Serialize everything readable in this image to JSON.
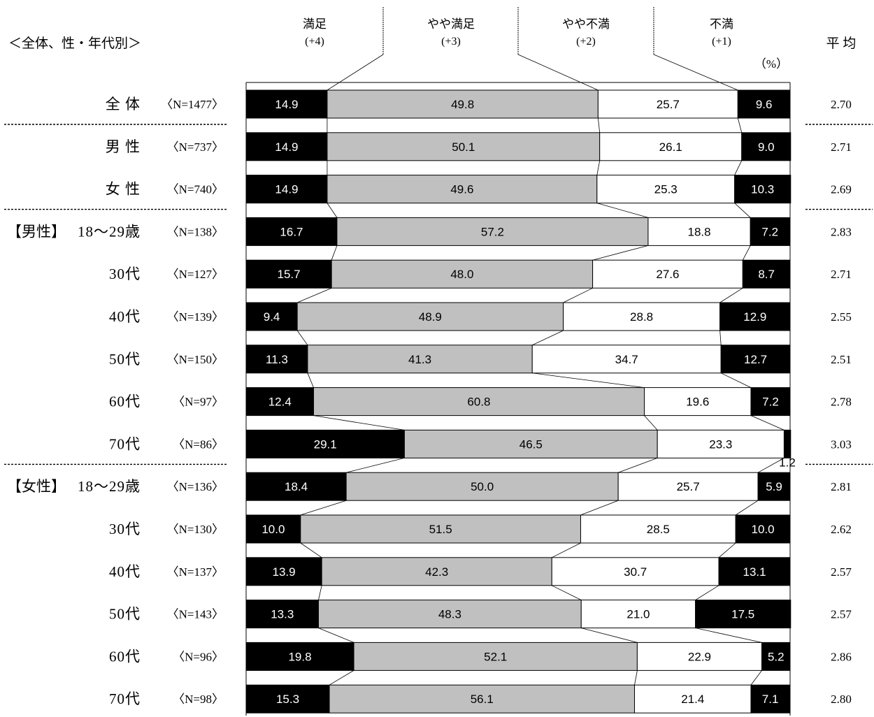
{
  "chart_data": {
    "type": "bar",
    "stacked": true,
    "orientation": "horizontal",
    "title": "＜全体、性・年代別＞",
    "unit": "（%）",
    "average_header": "平 均",
    "legend_placement": "top",
    "series": [
      {
        "name": "満足",
        "score": "(+4)",
        "color": "#000000"
      },
      {
        "name": "やや満足",
        "score": "(+3)",
        "color": "#c0c0c0"
      },
      {
        "name": "やや不満",
        "score": "(+2)",
        "color": "#ffffff"
      },
      {
        "name": "不満",
        "score": "(+1)",
        "color": "#000000"
      }
    ],
    "rows": [
      {
        "group": "",
        "label": "全 体",
        "n": "〈N=1477〉",
        "values": [
          14.9,
          49.8,
          25.7,
          9.6
        ],
        "average": "2.70"
      },
      {
        "group": "",
        "label": "男 性",
        "n": "〈N=737〉",
        "values": [
          14.9,
          50.1,
          26.1,
          9.0
        ],
        "average": "2.71"
      },
      {
        "group": "",
        "label": "女 性",
        "n": "〈N=740〉",
        "values": [
          14.9,
          49.6,
          25.3,
          10.3
        ],
        "average": "2.69"
      },
      {
        "group": "【男性】",
        "label": "18～29歳",
        "n": "〈N=138〉",
        "values": [
          16.7,
          57.2,
          18.8,
          7.2
        ],
        "average": "2.83"
      },
      {
        "group": "",
        "label": "30代",
        "n": "〈N=127〉",
        "values": [
          15.7,
          48.0,
          27.6,
          8.7
        ],
        "average": "2.71"
      },
      {
        "group": "",
        "label": "40代",
        "n": "〈N=139〉",
        "values": [
          9.4,
          48.9,
          28.8,
          12.9
        ],
        "average": "2.55"
      },
      {
        "group": "",
        "label": "50代",
        "n": "〈N=150〉",
        "values": [
          11.3,
          41.3,
          34.7,
          12.7
        ],
        "average": "2.51"
      },
      {
        "group": "",
        "label": "60代",
        "n": "〈N=97〉",
        "values": [
          12.4,
          60.8,
          19.6,
          7.2
        ],
        "average": "2.78"
      },
      {
        "group": "",
        "label": "70代",
        "n": "〈N=86〉",
        "values": [
          29.1,
          46.5,
          23.3,
          1.2
        ],
        "average": "3.03"
      },
      {
        "group": "【女性】",
        "label": "18～29歳",
        "n": "〈N=136〉",
        "values": [
          18.4,
          50.0,
          25.7,
          5.9
        ],
        "average": "2.81"
      },
      {
        "group": "",
        "label": "30代",
        "n": "〈N=130〉",
        "values": [
          10.0,
          51.5,
          28.5,
          10.0
        ],
        "average": "2.62"
      },
      {
        "group": "",
        "label": "40代",
        "n": "〈N=137〉",
        "values": [
          13.9,
          42.3,
          30.7,
          13.1
        ],
        "average": "2.57"
      },
      {
        "group": "",
        "label": "50代",
        "n": "〈N=143〉",
        "values": [
          13.3,
          48.3,
          21.0,
          17.5
        ],
        "average": "2.57"
      },
      {
        "group": "",
        "label": "60代",
        "n": "〈N=96〉",
        "values": [
          19.8,
          52.1,
          22.9,
          5.2
        ],
        "average": "2.86"
      },
      {
        "group": "",
        "label": "70代",
        "n": "〈N=98〉",
        "values": [
          15.3,
          56.1,
          21.4,
          7.1
        ],
        "average": "2.80"
      }
    ]
  }
}
